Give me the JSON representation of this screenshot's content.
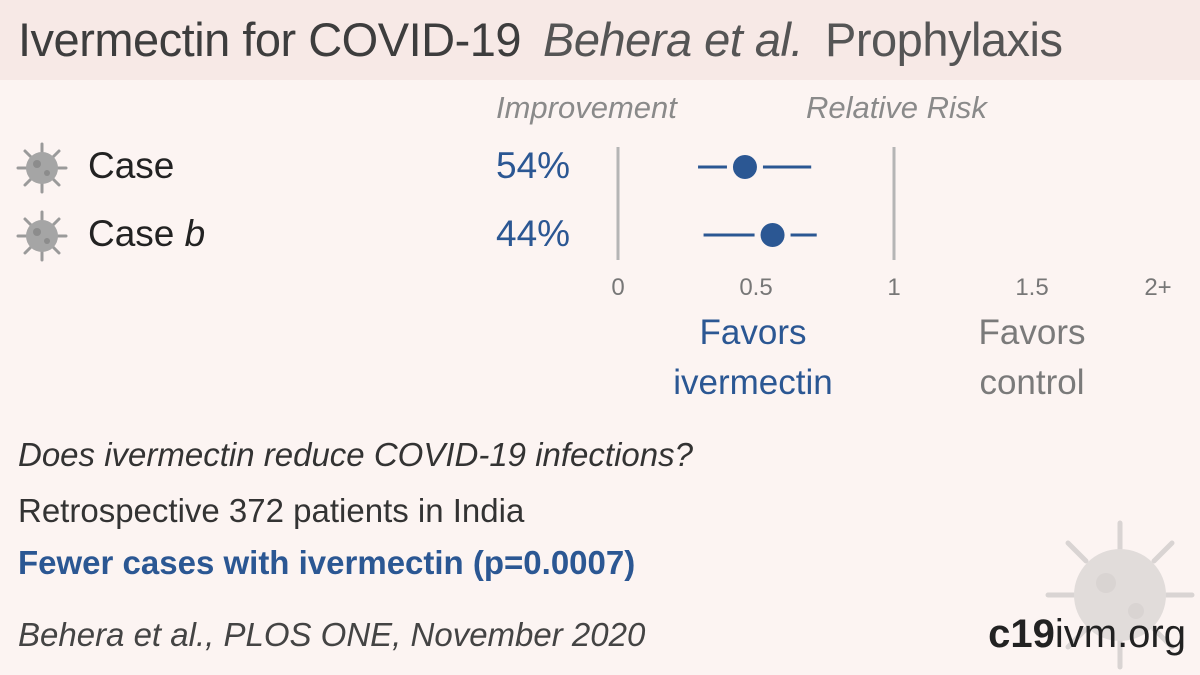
{
  "header": {
    "title": "Ivermectin for COVID-19",
    "authors": "Behera et al.",
    "type": "Prophylaxis"
  },
  "columns": {
    "improvement": "Improvement",
    "relative_risk": "Relative Risk"
  },
  "rows": [
    {
      "label": "Case",
      "label_suffix": "",
      "improvement": "54%"
    },
    {
      "label": "Case ",
      "label_suffix": "b",
      "improvement": "44%"
    }
  ],
  "axis": {
    "ticks": [
      "0",
      "0.5",
      "1",
      "1.5",
      "2+"
    ]
  },
  "favors": {
    "left_line1": "Favors",
    "left_line2": "ivermectin",
    "right_line1": "Favors",
    "right_line2": "control"
  },
  "summary": {
    "question": "Does ivermectin reduce COVID-19 infections?",
    "design": "Retrospective 372 patients in India",
    "conclusion": "Fewer cases with ivermectin (p=0.0007)",
    "citation": "Behera et al., PLOS ONE, November 2020"
  },
  "brand": {
    "bold": "c19",
    "rest": "ivm.org"
  },
  "colors": {
    "accent": "#2b5793",
    "background": "#fcf4f2"
  },
  "chart_data": {
    "type": "scatter",
    "title": "",
    "xlabel": "Relative Risk",
    "categories": [
      "Case",
      "Case b"
    ],
    "xlim": [
      0,
      2
    ],
    "x_ticks": [
      0,
      0.5,
      1,
      1.5,
      2
    ],
    "series": [
      {
        "values": [
          0.46,
          0.56
        ],
        "ci_low": [
          0.29,
          0.31
        ],
        "ci_high": [
          0.7,
          0.72
        ]
      }
    ],
    "reference_lines": [
      0,
      1
    ]
  }
}
